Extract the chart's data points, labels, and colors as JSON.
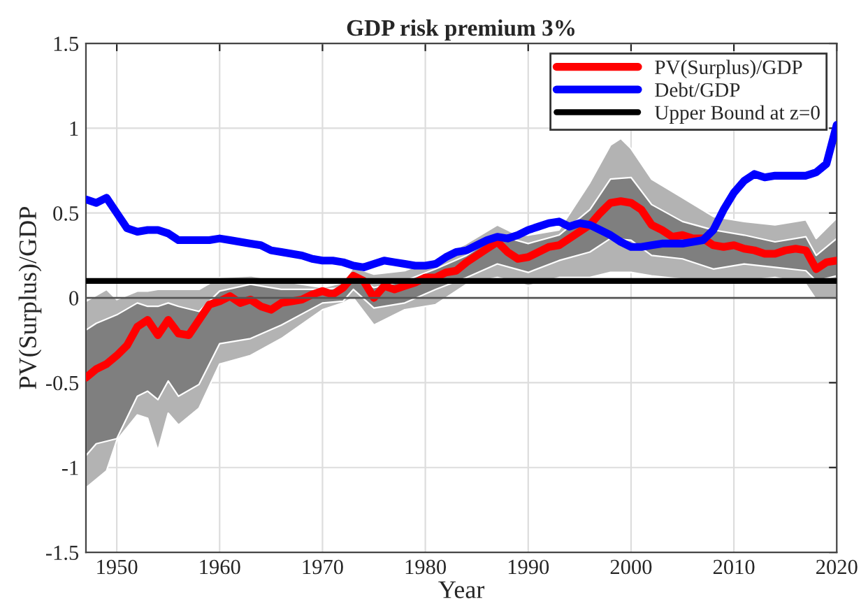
{
  "chart_data": {
    "type": "line",
    "title": "GDP risk premium 3%",
    "xlabel": "Year",
    "ylabel": "PV(Surplus)/GDP",
    "x": [
      1947,
      1948,
      1949,
      1950,
      1951,
      1952,
      1953,
      1954,
      1955,
      1956,
      1957,
      1958,
      1959,
      1960,
      1961,
      1962,
      1963,
      1964,
      1965,
      1966,
      1967,
      1968,
      1969,
      1970,
      1971,
      1972,
      1973,
      1974,
      1975,
      1976,
      1977,
      1978,
      1979,
      1980,
      1981,
      1982,
      1983,
      1984,
      1985,
      1986,
      1987,
      1988,
      1989,
      1990,
      1991,
      1992,
      1993,
      1994,
      1995,
      1996,
      1997,
      1998,
      1999,
      2000,
      2001,
      2002,
      2003,
      2004,
      2005,
      2006,
      2007,
      2008,
      2009,
      2010,
      2011,
      2012,
      2013,
      2014,
      2015,
      2016,
      2017,
      2018,
      2019,
      2020
    ],
    "series": [
      {
        "color": "#b3b3b3",
        "x": [
          1947,
          1949,
          1950,
          1952,
          1953,
          1954,
          1955,
          1956,
          1958,
          1960,
          1963,
          1966,
          1970,
          1972,
          1973,
          1975,
          1978,
          1981,
          1984,
          1987,
          1989,
          1990,
          1993,
          1996,
          1998,
          1999,
          2000,
          2002,
          2005,
          2008,
          2011,
          2014,
          2017,
          2018,
          2020
        ],
        "values": [
          null,
          null,
          null,
          null,
          null,
          null,
          null,
          null,
          null,
          null,
          null,
          null,
          null,
          null,
          null,
          null,
          null,
          null,
          null,
          null,
          null,
          null,
          null,
          null,
          null,
          null,
          null,
          null,
          null,
          null,
          null,
          null,
          null,
          null,
          null
        ],
        "lower": [
          -1.12,
          -1.02,
          -0.84,
          -0.69,
          -0.71,
          -0.9,
          -0.68,
          -0.75,
          -0.65,
          -0.39,
          -0.34,
          -0.24,
          -0.07,
          -0.03,
          0.0,
          -0.16,
          -0.07,
          -0.04,
          0.08,
          0.12,
          0.09,
          0.07,
          0.12,
          0.12,
          0.15,
          0.15,
          0.15,
          0.13,
          0.11,
          0.1,
          0.1,
          0.12,
          0.08,
          -0.01,
          0.0
        ],
        "upper": [
          -0.02,
          0.05,
          -0.01,
          0.04,
          0.04,
          0.05,
          0.05,
          0.05,
          0.05,
          0.12,
          0.13,
          0.1,
          0.06,
          0.09,
          0.18,
          0.14,
          0.16,
          0.23,
          0.32,
          0.43,
          0.37,
          0.37,
          0.4,
          0.68,
          0.9,
          0.94,
          0.88,
          0.7,
          0.59,
          0.48,
          0.45,
          0.43,
          0.46,
          0.35,
          0.47
        ]
      },
      {
        "color": "#7f7f7f",
        "x": [
          1947,
          1948,
          1950,
          1952,
          1953,
          1954,
          1955,
          1956,
          1958,
          1960,
          1963,
          1966,
          1970,
          1972,
          1973,
          1975,
          1978,
          1981,
          1984,
          1987,
          1990,
          1993,
          1996,
          1998,
          2000,
          2002,
          2005,
          2008,
          2011,
          2014,
          2017,
          2018,
          2020
        ],
        "values": [
          null,
          null,
          null,
          null,
          null,
          null,
          null,
          null,
          null,
          null,
          null,
          null,
          null,
          null,
          null,
          null,
          null,
          null,
          null,
          null,
          null,
          null,
          null,
          null,
          null,
          null,
          null,
          null,
          null,
          null,
          null,
          null,
          null
        ],
        "lower": [
          -0.93,
          -0.86,
          -0.83,
          -0.58,
          -0.55,
          -0.6,
          -0.49,
          -0.58,
          -0.51,
          -0.27,
          -0.24,
          -0.16,
          -0.03,
          -0.02,
          0.05,
          -0.06,
          -0.03,
          0.05,
          0.12,
          0.2,
          0.15,
          0.22,
          0.27,
          0.35,
          0.34,
          0.25,
          0.23,
          0.17,
          0.2,
          0.18,
          0.16,
          0.1,
          0.13
        ],
        "upper": [
          -0.19,
          -0.15,
          -0.1,
          -0.03,
          -0.05,
          -0.05,
          -0.03,
          -0.05,
          -0.08,
          0.04,
          0.08,
          0.05,
          0.05,
          0.06,
          0.13,
          0.06,
          0.1,
          0.17,
          0.25,
          0.37,
          0.32,
          0.37,
          0.52,
          0.7,
          0.71,
          0.55,
          0.45,
          0.4,
          0.37,
          0.33,
          0.36,
          0.25,
          0.35
        ]
      },
      {
        "name": "PV(Surplus)/GDP",
        "color": "#ff0000",
        "values": [
          -0.47,
          -0.42,
          -0.39,
          -0.34,
          -0.28,
          -0.17,
          -0.13,
          -0.22,
          -0.13,
          -0.21,
          -0.22,
          -0.13,
          -0.04,
          -0.02,
          0.01,
          -0.03,
          -0.01,
          -0.05,
          -0.07,
          -0.03,
          -0.02,
          -0.01,
          0.02,
          0.04,
          0.02,
          0.06,
          0.13,
          0.1,
          0.0,
          0.07,
          0.05,
          0.07,
          0.09,
          0.12,
          0.12,
          0.15,
          0.16,
          0.21,
          0.25,
          0.29,
          0.33,
          0.27,
          0.23,
          0.24,
          0.27,
          0.3,
          0.31,
          0.35,
          0.39,
          0.43,
          0.5,
          0.56,
          0.57,
          0.56,
          0.52,
          0.43,
          0.4,
          0.36,
          0.37,
          0.35,
          0.35,
          0.31,
          0.3,
          0.31,
          0.29,
          0.28,
          0.26,
          0.26,
          0.28,
          0.29,
          0.28,
          0.17,
          0.21,
          0.22
        ]
      },
      {
        "name": "Debt/GDP",
        "color": "#0000ff",
        "values": [
          0.58,
          0.56,
          0.59,
          0.5,
          0.41,
          0.39,
          0.4,
          0.4,
          0.38,
          0.34,
          0.34,
          0.34,
          0.34,
          0.35,
          0.34,
          0.33,
          0.32,
          0.31,
          0.28,
          0.27,
          0.26,
          0.25,
          0.23,
          0.22,
          0.22,
          0.21,
          0.19,
          0.18,
          0.2,
          0.22,
          0.21,
          0.2,
          0.19,
          0.19,
          0.2,
          0.24,
          0.27,
          0.28,
          0.31,
          0.34,
          0.36,
          0.35,
          0.37,
          0.4,
          0.42,
          0.44,
          0.45,
          0.42,
          0.44,
          0.43,
          0.4,
          0.37,
          0.33,
          0.3,
          0.3,
          0.31,
          0.32,
          0.32,
          0.32,
          0.33,
          0.34,
          0.4,
          0.52,
          0.62,
          0.69,
          0.73,
          0.71,
          0.72,
          0.72,
          0.72,
          0.72,
          0.74,
          0.79,
          1.02
        ]
      }
    ],
    "ref_lines": [
      {
        "axis": "y",
        "value": 0.1,
        "label": "Upper Bound at z=0",
        "color": "#000000"
      },
      {
        "axis": "y",
        "value": 0,
        "color": "#555555"
      }
    ],
    "xlim": [
      1947,
      2020
    ],
    "xticks": [
      1950,
      1960,
      1970,
      1980,
      1990,
      2000,
      2010,
      2020
    ],
    "ylim": [
      -1.5,
      1.5
    ],
    "yticks": [
      -1.5,
      -1,
      -0.5,
      0,
      0.5,
      1,
      1.5
    ],
    "grid": true,
    "legend": "top right"
  }
}
